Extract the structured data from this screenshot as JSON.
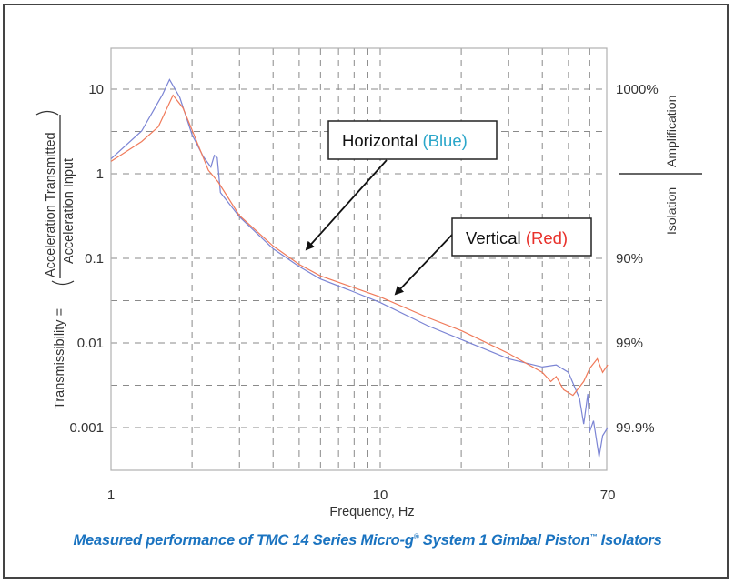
{
  "chart_data": {
    "type": "line",
    "title": "",
    "xlabel": "Frequency, Hz",
    "ylabel": "Transmissibility = (Acceleration Transmitted / Acceleration Input)",
    "ylabel_prefix": "Transmissibility =",
    "ylabel_numerator": "Acceleration Transmitted",
    "ylabel_denominator": "Acceleration Input",
    "xscale": "log",
    "yscale": "log",
    "xlim": [
      1,
      70
    ],
    "ylim": [
      0.0003,
      30
    ],
    "x_tick_labels": [
      "1",
      "10",
      "70"
    ],
    "x_ticks": [
      1,
      10,
      70
    ],
    "y_tick_labels": [
      "10",
      "1",
      "0.1",
      "0.01",
      "0.001"
    ],
    "y_ticks": [
      10,
      1,
      0.1,
      0.01,
      0.001
    ],
    "right_axis": {
      "tick_labels": [
        "1000%",
        "90%",
        "99%",
        "99.9%"
      ],
      "tick_values": [
        10,
        0.1,
        0.01,
        0.001
      ],
      "label_upper": "Amplification",
      "label_lower": "Isolation"
    },
    "grid": true,
    "series": [
      {
        "name": "Horizontal (Blue)",
        "color": "#7b84d4",
        "x": [
          1.0,
          1.3,
          1.55,
          1.65,
          1.8,
          2.0,
          2.2,
          2.35,
          2.42,
          2.48,
          2.55,
          3.0,
          4.0,
          5.0,
          6.0,
          8.0,
          10.0,
          15.0,
          20.0,
          30.0,
          40.0,
          45.0,
          50.0,
          55.0,
          57.0,
          59.0,
          60.0,
          62.0,
          65.0,
          67.0,
          70.0
        ],
        "y": [
          1.5,
          3.2,
          8.5,
          13.0,
          8.0,
          2.9,
          1.6,
          1.2,
          1.65,
          1.55,
          0.6,
          0.31,
          0.13,
          0.08,
          0.057,
          0.04,
          0.03,
          0.016,
          0.011,
          0.0065,
          0.0052,
          0.0055,
          0.0045,
          0.0022,
          0.0011,
          0.0025,
          0.0009,
          0.0012,
          0.00045,
          0.0008,
          0.001
        ]
      },
      {
        "name": "Vertical (Red)",
        "color": "#f07a5a",
        "x": [
          1.0,
          1.3,
          1.5,
          1.7,
          1.85,
          2.0,
          2.3,
          2.5,
          3.0,
          4.0,
          5.0,
          6.0,
          8.0,
          10.0,
          15.0,
          20.0,
          30.0,
          40.0,
          43.0,
          45.0,
          48.0,
          52.0,
          57.0,
          60.0,
          64.0,
          67.0,
          70.0
        ],
        "y": [
          1.4,
          2.4,
          3.6,
          8.5,
          6.0,
          3.3,
          1.1,
          0.8,
          0.32,
          0.14,
          0.085,
          0.062,
          0.045,
          0.035,
          0.02,
          0.014,
          0.0075,
          0.0045,
          0.0035,
          0.004,
          0.0028,
          0.0024,
          0.0035,
          0.005,
          0.0065,
          0.0045,
          0.0055
        ]
      }
    ],
    "annotations": [
      {
        "text": "Horizontal",
        "highlight": "(Blue)",
        "highlight_color": "#2aa6c9",
        "points_to": [
          5.5,
          0.13
        ]
      },
      {
        "text": "Vertical",
        "highlight": "(Red)",
        "highlight_color": "#e8302a",
        "points_to": [
          11.0,
          0.04
        ]
      }
    ]
  },
  "caption": {
    "part1": "Measured performance of TMC 14 Series Micro-g",
    "reg": "®",
    "part2": " System 1 Gimbal Piston",
    "tm": "™",
    "part3": " Isolators"
  }
}
